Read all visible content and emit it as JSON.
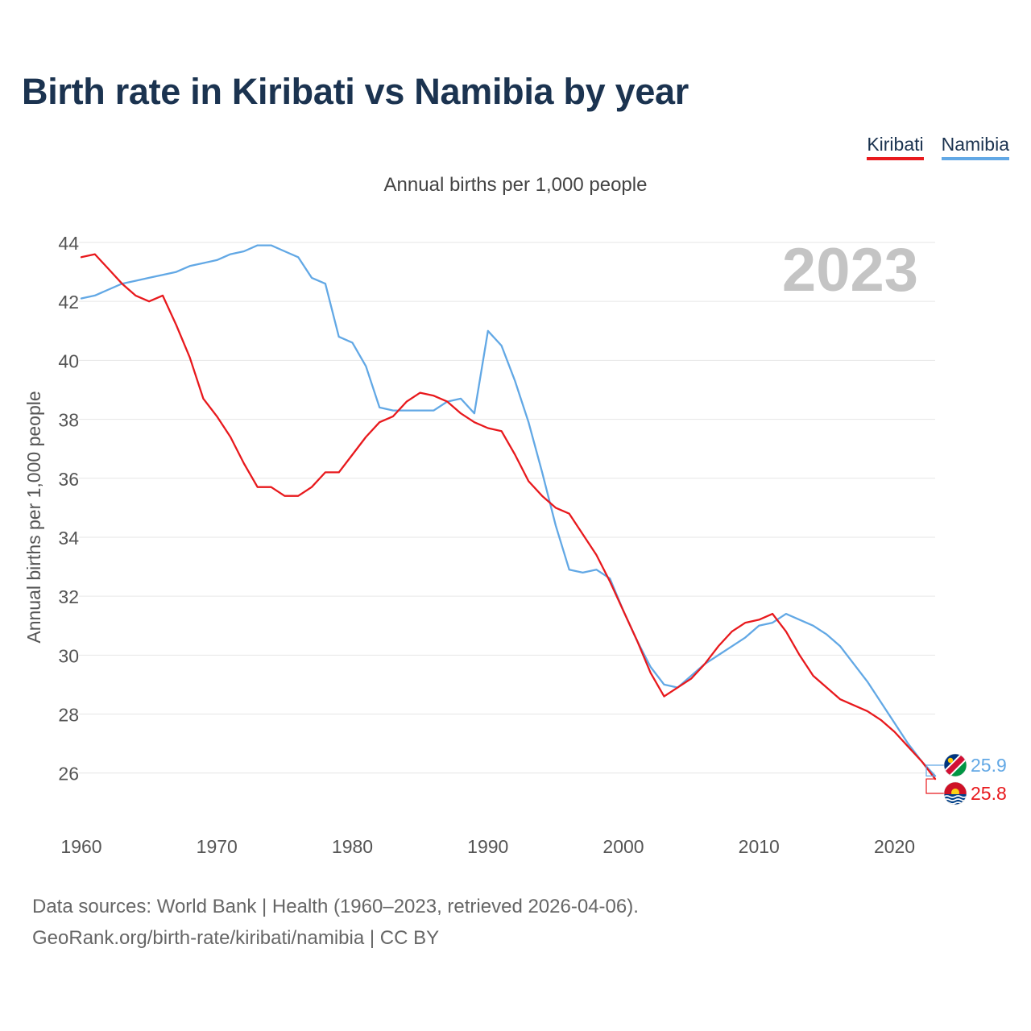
{
  "chart_data": {
    "type": "line",
    "title": "Birth rate in Kiribati vs Namibia by year",
    "subtitle": "Annual births per 1,000 people",
    "ylabel": "Annual births per 1,000 people",
    "xlabel": "",
    "year_label": "2023",
    "xlim": [
      1960,
      2023
    ],
    "ylim": [
      24.9,
      44.3
    ],
    "yticks": [
      26,
      28,
      30,
      32,
      34,
      36,
      38,
      40,
      42,
      44
    ],
    "xticks": [
      1960,
      1970,
      1980,
      1990,
      2000,
      2010,
      2020
    ],
    "x": [
      1960,
      1961,
      1962,
      1963,
      1964,
      1965,
      1966,
      1967,
      1968,
      1969,
      1970,
      1971,
      1972,
      1973,
      1974,
      1975,
      1976,
      1977,
      1978,
      1979,
      1980,
      1981,
      1982,
      1983,
      1984,
      1985,
      1986,
      1987,
      1988,
      1989,
      1990,
      1991,
      1992,
      1993,
      1994,
      1995,
      1996,
      1997,
      1998,
      1999,
      2000,
      2001,
      2002,
      2003,
      2004,
      2005,
      2006,
      2007,
      2008,
      2009,
      2010,
      2011,
      2012,
      2013,
      2014,
      2015,
      2016,
      2017,
      2018,
      2019,
      2020,
      2021,
      2022,
      2023
    ],
    "series": [
      {
        "name": "Kiribati",
        "color": "#e8191d",
        "end_label": "25.8",
        "values": [
          43.5,
          43.6,
          43.1,
          42.6,
          42.2,
          42.0,
          42.2,
          41.2,
          40.1,
          38.7,
          38.1,
          37.4,
          36.5,
          35.7,
          35.7,
          35.4,
          35.4,
          35.7,
          36.2,
          36.2,
          36.8,
          37.4,
          37.9,
          38.1,
          38.6,
          38.9,
          38.8,
          38.6,
          38.2,
          37.9,
          37.7,
          37.6,
          36.8,
          35.9,
          35.4,
          35.0,
          34.8,
          34.1,
          33.4,
          32.5,
          31.5,
          30.5,
          29.4,
          28.6,
          28.9,
          29.2,
          29.7,
          30.3,
          30.8,
          31.1,
          31.2,
          31.4,
          30.8,
          30.0,
          29.3,
          28.9,
          28.5,
          28.3,
          28.1,
          27.8,
          27.4,
          26.9,
          26.4,
          25.8
        ]
      },
      {
        "name": "Namibia",
        "color": "#62a8e5",
        "end_label": "25.9",
        "values": [
          42.1,
          42.2,
          42.4,
          42.6,
          42.7,
          42.8,
          42.9,
          43.0,
          43.2,
          43.3,
          43.4,
          43.6,
          43.7,
          43.9,
          43.9,
          43.7,
          43.5,
          42.8,
          42.6,
          40.8,
          40.6,
          39.8,
          38.4,
          38.3,
          38.3,
          38.3,
          38.3,
          38.6,
          38.7,
          38.2,
          41.0,
          40.5,
          39.3,
          37.9,
          36.2,
          34.4,
          32.9,
          32.8,
          32.9,
          32.6,
          31.5,
          30.5,
          29.6,
          29.0,
          28.9,
          29.3,
          29.7,
          30.0,
          30.3,
          30.6,
          31.0,
          31.1,
          31.4,
          31.2,
          31.0,
          30.7,
          30.3,
          29.7,
          29.1,
          28.4,
          27.7,
          27.0,
          26.4,
          25.9
        ]
      }
    ]
  },
  "footer": {
    "line1": "Data sources: World Bank | Health (1960–2023, retrieved 2026-04-06).",
    "line2": "GeoRank.org/birth-rate/kiribati/namibia | CC BY"
  },
  "colors": {
    "title": "#1b3350",
    "grid": "#e6e6e6",
    "axis_text": "#555555",
    "year_watermark": "#c4c4c4"
  }
}
